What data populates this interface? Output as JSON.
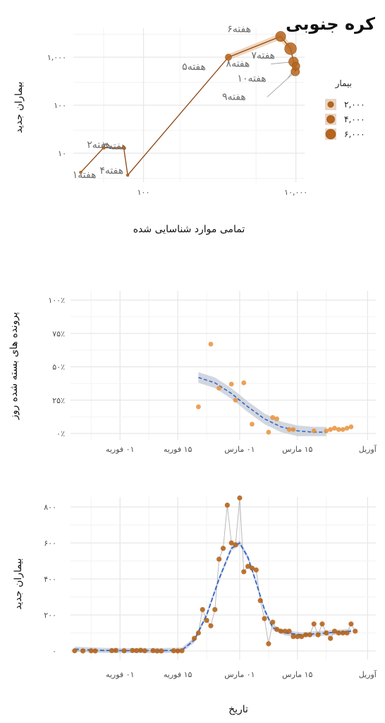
{
  "colors": {
    "path_line": "#8b4513",
    "point_brown": "#b5651d",
    "point_orange": "#e8923c",
    "trend_blue": "#3366cc",
    "ribbon": "#bfc6d1",
    "grid": "#e6e6e6",
    "connector": "#b3b3b3"
  },
  "chart_data": [
    {
      "type": "scatter",
      "title": "کره جنوبی",
      "xlabel": "تمامی موارد شناسایی شده",
      "ylabel": "بیماران جدید",
      "x_scale": "log",
      "y_scale": "log",
      "xticks": [
        {
          "v": 100,
          "label": "۱۰۰"
        },
        {
          "v": 10000,
          "label": "۱۰,۰۰۰"
        }
      ],
      "yticks": [
        {
          "v": 10,
          "label": "۱۰"
        },
        {
          "v": 100,
          "label": "۱۰۰"
        },
        {
          "v": 1000,
          "label": "۱,۰۰۰"
        }
      ],
      "x_range": [
        12,
        13000
      ],
      "y_range": [
        2.5,
        4000
      ],
      "points": [
        {
          "x": 15,
          "y": 4,
          "size": 4,
          "label": "هفته۱"
        },
        {
          "x": 30,
          "y": 13,
          "size": 20,
          "label": "هفته۲"
        },
        {
          "x": 55,
          "y": 13,
          "size": 25,
          "label": "هفته۳"
        },
        {
          "x": 62,
          "y": 3.5,
          "size": 3,
          "label": "هفته۴"
        },
        {
          "x": 1300,
          "y": 1000,
          "size": 1000,
          "label": "هفته۵"
        },
        {
          "x": 6300,
          "y": 2700,
          "size": 4000,
          "label": "هفته۶"
        },
        {
          "x": 8500,
          "y": 1500,
          "size": 6000,
          "label": "هفته۷"
        },
        {
          "x": 9300,
          "y": 800,
          "size": 3500,
          "label": "هفته۸"
        },
        {
          "x": 9800,
          "y": 500,
          "size": 2500,
          "label": "هفته۹"
        },
        {
          "x": 10000,
          "y": 650,
          "size": 2000,
          "label": "هفته۱۰"
        }
      ],
      "legend": {
        "title": "بیمار",
        "placement": "right",
        "entries": [
          "۲,۰۰۰",
          "۴,۰۰۰",
          "۶,۰۰۰"
        ]
      }
    },
    {
      "type": "scatter",
      "ylabel": "پرونده های بسته شده روز",
      "ylim": [
        0,
        100
      ],
      "yticks": [
        {
          "v": 0,
          "label": "۰٪"
        },
        {
          "v": 25,
          "label": "۲۵٪"
        },
        {
          "v": 50,
          "label": "۵۰٪"
        },
        {
          "v": 75,
          "label": "۷۵٪"
        },
        {
          "v": 100,
          "label": "۱۰۰٪"
        }
      ],
      "xticks": [
        {
          "date": "2020-02-01",
          "label": "۰۱ فوریه"
        },
        {
          "date": "2020-02-15",
          "label": "۱۵ فوریه"
        },
        {
          "date": "2020-03-01",
          "label": "۰۱ مارس"
        },
        {
          "date": "2020-03-15",
          "label": "۱۵ مارس"
        },
        {
          "date": "2020-04-01",
          "label": "آوریل"
        }
      ],
      "x_range": [
        "2020-01-20",
        "2020-04-03"
      ],
      "points": [
        {
          "date": "2020-02-20",
          "value": 20
        },
        {
          "date": "2020-02-23",
          "value": 67
        },
        {
          "date": "2020-02-25",
          "value": 34
        },
        {
          "date": "2020-02-28",
          "value": 37
        },
        {
          "date": "2020-02-29",
          "value": 25
        },
        {
          "date": "2020-03-02",
          "value": 38
        },
        {
          "date": "2020-03-04",
          "value": 7
        },
        {
          "date": "2020-03-08",
          "value": 1
        },
        {
          "date": "2020-03-09",
          "value": 12
        },
        {
          "date": "2020-03-10",
          "value": 11
        },
        {
          "date": "2020-03-13",
          "value": 3
        },
        {
          "date": "2020-03-14",
          "value": 3
        },
        {
          "date": "2020-03-19",
          "value": 2
        },
        {
          "date": "2020-03-22",
          "value": 2
        },
        {
          "date": "2020-03-23",
          "value": 3
        },
        {
          "date": "2020-03-24",
          "value": 4
        },
        {
          "date": "2020-03-25",
          "value": 3
        },
        {
          "date": "2020-03-26",
          "value": 3
        },
        {
          "date": "2020-03-27",
          "value": 4
        },
        {
          "date": "2020-03-28",
          "value": 5
        }
      ],
      "trend": [
        {
          "date": "2020-02-20",
          "value": 42
        },
        {
          "date": "2020-02-24",
          "value": 38
        },
        {
          "date": "2020-02-28",
          "value": 30
        },
        {
          "date": "2020-03-03",
          "value": 20
        },
        {
          "date": "2020-03-07",
          "value": 11
        },
        {
          "date": "2020-03-11",
          "value": 5
        },
        {
          "date": "2020-03-15",
          "value": 2
        },
        {
          "date": "2020-03-19",
          "value": 1
        },
        {
          "date": "2020-03-22",
          "value": 1
        }
      ]
    },
    {
      "type": "line",
      "xlabel": "تاریخ",
      "ylabel": "بیماران جدید",
      "ylim": [
        0,
        850
      ],
      "yticks": [
        {
          "v": 0,
          "label": "۰"
        },
        {
          "v": 200,
          "label": "۲۰۰"
        },
        {
          "v": 400,
          "label": "۴۰۰"
        },
        {
          "v": 600,
          "label": "۶۰۰"
        },
        {
          "v": 800,
          "label": "۸۰۰"
        }
      ],
      "xticks": [
        {
          "date": "2020-02-01",
          "label": "۰۱ فوریه"
        },
        {
          "date": "2020-02-15",
          "label": "۱۵ فوریه"
        },
        {
          "date": "2020-03-01",
          "label": "۰۱ مارس"
        },
        {
          "date": "2020-03-15",
          "label": "۱۵ مارس"
        },
        {
          "date": "2020-04-01",
          "label": "آوریل"
        }
      ],
      "x_range": [
        "2020-01-20",
        "2020-04-03"
      ],
      "points": [
        {
          "date": "2020-01-21",
          "value": 1
        },
        {
          "date": "2020-01-23",
          "value": 0
        },
        {
          "date": "2020-01-25",
          "value": 1
        },
        {
          "date": "2020-01-26",
          "value": 0
        },
        {
          "date": "2020-01-30",
          "value": 2
        },
        {
          "date": "2020-01-31",
          "value": 3
        },
        {
          "date": "2020-02-02",
          "value": 1
        },
        {
          "date": "2020-02-04",
          "value": 3
        },
        {
          "date": "2020-02-05",
          "value": 2
        },
        {
          "date": "2020-02-06",
          "value": 4
        },
        {
          "date": "2020-02-07",
          "value": 1
        },
        {
          "date": "2020-02-09",
          "value": 2
        },
        {
          "date": "2020-02-10",
          "value": 0
        },
        {
          "date": "2020-02-11",
          "value": 0
        },
        {
          "date": "2020-02-14",
          "value": 1
        },
        {
          "date": "2020-02-15",
          "value": 0
        },
        {
          "date": "2020-02-16",
          "value": 1
        },
        {
          "date": "2020-02-19",
          "value": 70
        },
        {
          "date": "2020-02-20",
          "value": 100
        },
        {
          "date": "2020-02-21",
          "value": 230
        },
        {
          "date": "2020-02-22",
          "value": 170
        },
        {
          "date": "2020-02-23",
          "value": 140
        },
        {
          "date": "2020-02-24",
          "value": 230
        },
        {
          "date": "2020-02-25",
          "value": 510
        },
        {
          "date": "2020-02-26",
          "value": 570
        },
        {
          "date": "2020-02-27",
          "value": 810
        },
        {
          "date": "2020-02-28",
          "value": 600
        },
        {
          "date": "2020-02-29",
          "value": 590
        },
        {
          "date": "2020-03-01",
          "value": 850
        },
        {
          "date": "2020-03-02",
          "value": 440
        },
        {
          "date": "2020-03-03",
          "value": 470
        },
        {
          "date": "2020-03-04",
          "value": 460
        },
        {
          "date": "2020-03-05",
          "value": 450
        },
        {
          "date": "2020-03-06",
          "value": 280
        },
        {
          "date": "2020-03-07",
          "value": 180
        },
        {
          "date": "2020-03-08",
          "value": 40
        },
        {
          "date": "2020-03-09",
          "value": 160
        },
        {
          "date": "2020-03-10",
          "value": 120
        },
        {
          "date": "2020-03-11",
          "value": 110
        },
        {
          "date": "2020-03-12",
          "value": 110
        },
        {
          "date": "2020-03-13",
          "value": 110
        },
        {
          "date": "2020-03-14",
          "value": 80
        },
        {
          "date": "2020-03-15",
          "value": 80
        },
        {
          "date": "2020-03-16",
          "value": 80
        },
        {
          "date": "2020-03-17",
          "value": 90
        },
        {
          "date": "2020-03-18",
          "value": 90
        },
        {
          "date": "2020-03-19",
          "value": 150
        },
        {
          "date": "2020-03-20",
          "value": 90
        },
        {
          "date": "2020-03-21",
          "value": 150
        },
        {
          "date": "2020-03-22",
          "value": 100
        },
        {
          "date": "2020-03-23",
          "value": 70
        },
        {
          "date": "2020-03-24",
          "value": 110
        },
        {
          "date": "2020-03-25",
          "value": 100
        },
        {
          "date": "2020-03-26",
          "value": 100
        },
        {
          "date": "2020-03-27",
          "value": 100
        },
        {
          "date": "2020-03-28",
          "value": 150
        },
        {
          "date": "2020-03-29",
          "value": 110
        }
      ],
      "trend": [
        {
          "date": "2020-01-21",
          "value": 10
        },
        {
          "date": "2020-01-28",
          "value": 3
        },
        {
          "date": "2020-02-04",
          "value": 2
        },
        {
          "date": "2020-02-11",
          "value": 2
        },
        {
          "date": "2020-02-16",
          "value": 5
        },
        {
          "date": "2020-02-19",
          "value": 60
        },
        {
          "date": "2020-02-22",
          "value": 200
        },
        {
          "date": "2020-02-25",
          "value": 400
        },
        {
          "date": "2020-02-28",
          "value": 570
        },
        {
          "date": "2020-03-01",
          "value": 600
        },
        {
          "date": "2020-03-03",
          "value": 520
        },
        {
          "date": "2020-03-05",
          "value": 380
        },
        {
          "date": "2020-03-07",
          "value": 230
        },
        {
          "date": "2020-03-09",
          "value": 130
        },
        {
          "date": "2020-03-12",
          "value": 100
        },
        {
          "date": "2020-03-16",
          "value": 90
        },
        {
          "date": "2020-03-22",
          "value": 100
        },
        {
          "date": "2020-03-28",
          "value": 110
        }
      ]
    }
  ]
}
